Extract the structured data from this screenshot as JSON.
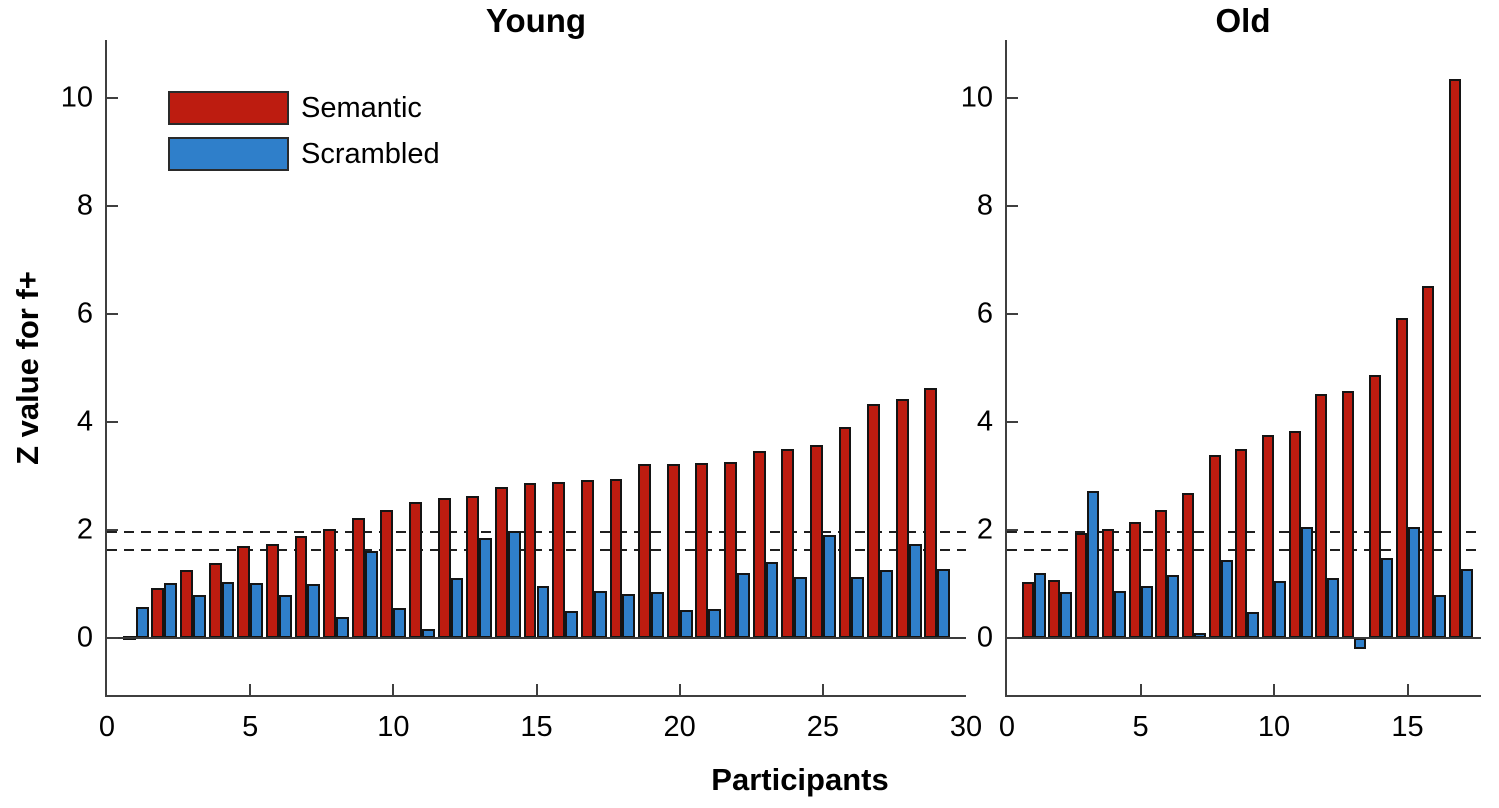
{
  "figure": {
    "xlabel": "Participants",
    "ylabel": "Z value for f+"
  },
  "colors": {
    "semantic": "#bd1c10",
    "scrambled": "#2f7fca",
    "bar_edge": "#141414",
    "axis": "#3f3f3f",
    "threshold_line": "#1f1f1f"
  },
  "legend": {
    "items": [
      {
        "label": "Semantic",
        "color": "#bd1c10"
      },
      {
        "label": "Scrambled",
        "color": "#2f7fca"
      }
    ]
  },
  "chart_data": [
    {
      "type": "bar",
      "title": "Young",
      "xlabel": "Participants",
      "ylabel": "Z value for f+",
      "categories": [
        1,
        2,
        3,
        4,
        5,
        6,
        7,
        8,
        9,
        10,
        11,
        12,
        13,
        14,
        15,
        16,
        17,
        18,
        19,
        20,
        21,
        22,
        23,
        24,
        25,
        26,
        27,
        28,
        29
      ],
      "series": [
        {
          "name": "Semantic",
          "values": [
            0.05,
            0.93,
            1.27,
            1.4,
            1.71,
            1.75,
            1.9,
            2.02,
            2.22,
            2.37,
            2.52,
            2.6,
            2.63,
            2.8,
            2.88,
            2.9,
            2.92,
            2.94,
            3.22,
            3.23,
            3.25,
            3.27,
            3.47,
            3.5,
            3.58,
            3.9,
            4.33,
            4.43,
            4.63
          ]
        },
        {
          "name": "Scrambled",
          "values": [
            0.57,
            1.03,
            0.8,
            1.05,
            1.03,
            0.8,
            1.01,
            0.39,
            1.62,
            0.56,
            0.18,
            1.11,
            1.86,
            1.99,
            0.96,
            0.5,
            0.88,
            0.81,
            0.86,
            0.52,
            0.54,
            1.2,
            1.42,
            1.13,
            1.91,
            1.14,
            1.26,
            1.75,
            1.28
          ]
        }
      ],
      "threshold_lines": [
        1.96,
        1.64
      ],
      "xticks": [
        0,
        5,
        10,
        15,
        20,
        25,
        30
      ],
      "yticks": [
        0,
        2,
        4,
        6,
        8,
        10
      ],
      "xlim": [
        0,
        30
      ],
      "ylim": [
        -1.05,
        11.07
      ],
      "grid": false,
      "legend_position": "upper-left"
    },
    {
      "type": "bar",
      "title": "Old",
      "xlabel": "Participants",
      "ylabel": "Z value for f+",
      "categories": [
        1,
        2,
        3,
        4,
        5,
        6,
        7,
        8,
        9,
        10,
        11,
        12,
        13,
        14,
        15,
        16,
        17
      ],
      "series": [
        {
          "name": "Semantic",
          "values": [
            1.05,
            1.08,
            1.95,
            2.02,
            2.15,
            2.38,
            2.69,
            3.4,
            3.51,
            3.77,
            3.83,
            4.52,
            4.57,
            4.87,
            5.93,
            6.52,
            10.35
          ]
        },
        {
          "name": "Scrambled",
          "values": [
            1.2,
            0.85,
            2.72,
            0.88,
            0.97,
            1.17,
            0.09,
            1.45,
            0.49,
            1.06,
            2.06,
            1.12,
            -0.2,
            1.49,
            2.06,
            0.8,
            1.29
          ]
        }
      ],
      "threshold_lines": [
        1.96,
        1.64
      ],
      "xticks": [
        0,
        5,
        10,
        15
      ],
      "yticks": [
        0,
        2,
        4,
        6,
        8,
        10
      ],
      "xlim": [
        0,
        17.75
      ],
      "ylim": [
        -1.05,
        11.07
      ],
      "grid": false,
      "legend_position": "none"
    }
  ],
  "layout_note": "two side-by-side bar panels sharing y scale; dashed significance lines at z=1.96 and z=1.64"
}
